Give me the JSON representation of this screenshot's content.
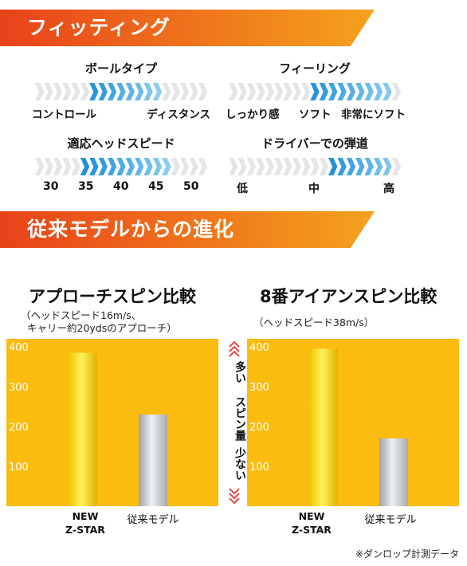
{
  "section_fitting": {
    "title": "フィッティング"
  },
  "gauges": {
    "ball_type": {
      "title": "ボールタイプ",
      "labels": [
        "コントロール",
        "ディスタンス"
      ],
      "highlight": [
        0.3,
        0.72
      ]
    },
    "feeling": {
      "title": "フィーリング",
      "labels": [
        "しっかり感",
        "ソフト",
        "非常にソフト"
      ],
      "highlight": [
        0.45,
        0.95
      ]
    },
    "head_speed": {
      "title": "適応ヘッドスピード",
      "labels": [
        "30",
        "35",
        "40",
        "45",
        "50"
      ],
      "highlight": [
        0.28,
        0.78
      ]
    },
    "trajectory": {
      "title": "ドライバーでの弾道",
      "labels": [
        "低",
        "中",
        "高"
      ],
      "highlight": [
        0.58,
        0.97
      ]
    }
  },
  "section_evolution": {
    "title": "従来モデルからの進化"
  },
  "spin_axis_label": {
    "top": "多い",
    "middle": "スピン量",
    "bottom": "少ない"
  },
  "chart_data": [
    {
      "type": "bar",
      "title": "アプローチスピン比較",
      "subtitle": [
        "（ヘッドスピード16m/s、",
        "キャリー約20ydsのアプローチ）"
      ],
      "categories": [
        "NEW Z-STAR",
        "従来モデル"
      ],
      "values": [
        385,
        230
      ],
      "yticks": [
        100,
        200,
        300,
        400
      ],
      "ylim": [
        0,
        420
      ],
      "grid": false
    },
    {
      "type": "bar",
      "title": "8番アイアンスピン比較",
      "subtitle": [
        "（ヘッドスピード38m/s）"
      ],
      "categories": [
        "NEW Z-STAR",
        "従来モデル"
      ],
      "values": [
        395,
        170
      ],
      "yticks": [
        100,
        200,
        300,
        400
      ],
      "ylim": [
        0,
        420
      ],
      "grid": false
    }
  ],
  "colors": {
    "banner_start": "#e8421a",
    "banner_end": "#f5a21d",
    "chart_bg": "#fbbc0f",
    "highlight_start": "#1b8fd8",
    "highlight_end": "#8ecdf0",
    "chevron_gray": "#e3e5e8",
    "accent_red": "#e04848"
  },
  "footnote": "※ダンロップ計測データ"
}
